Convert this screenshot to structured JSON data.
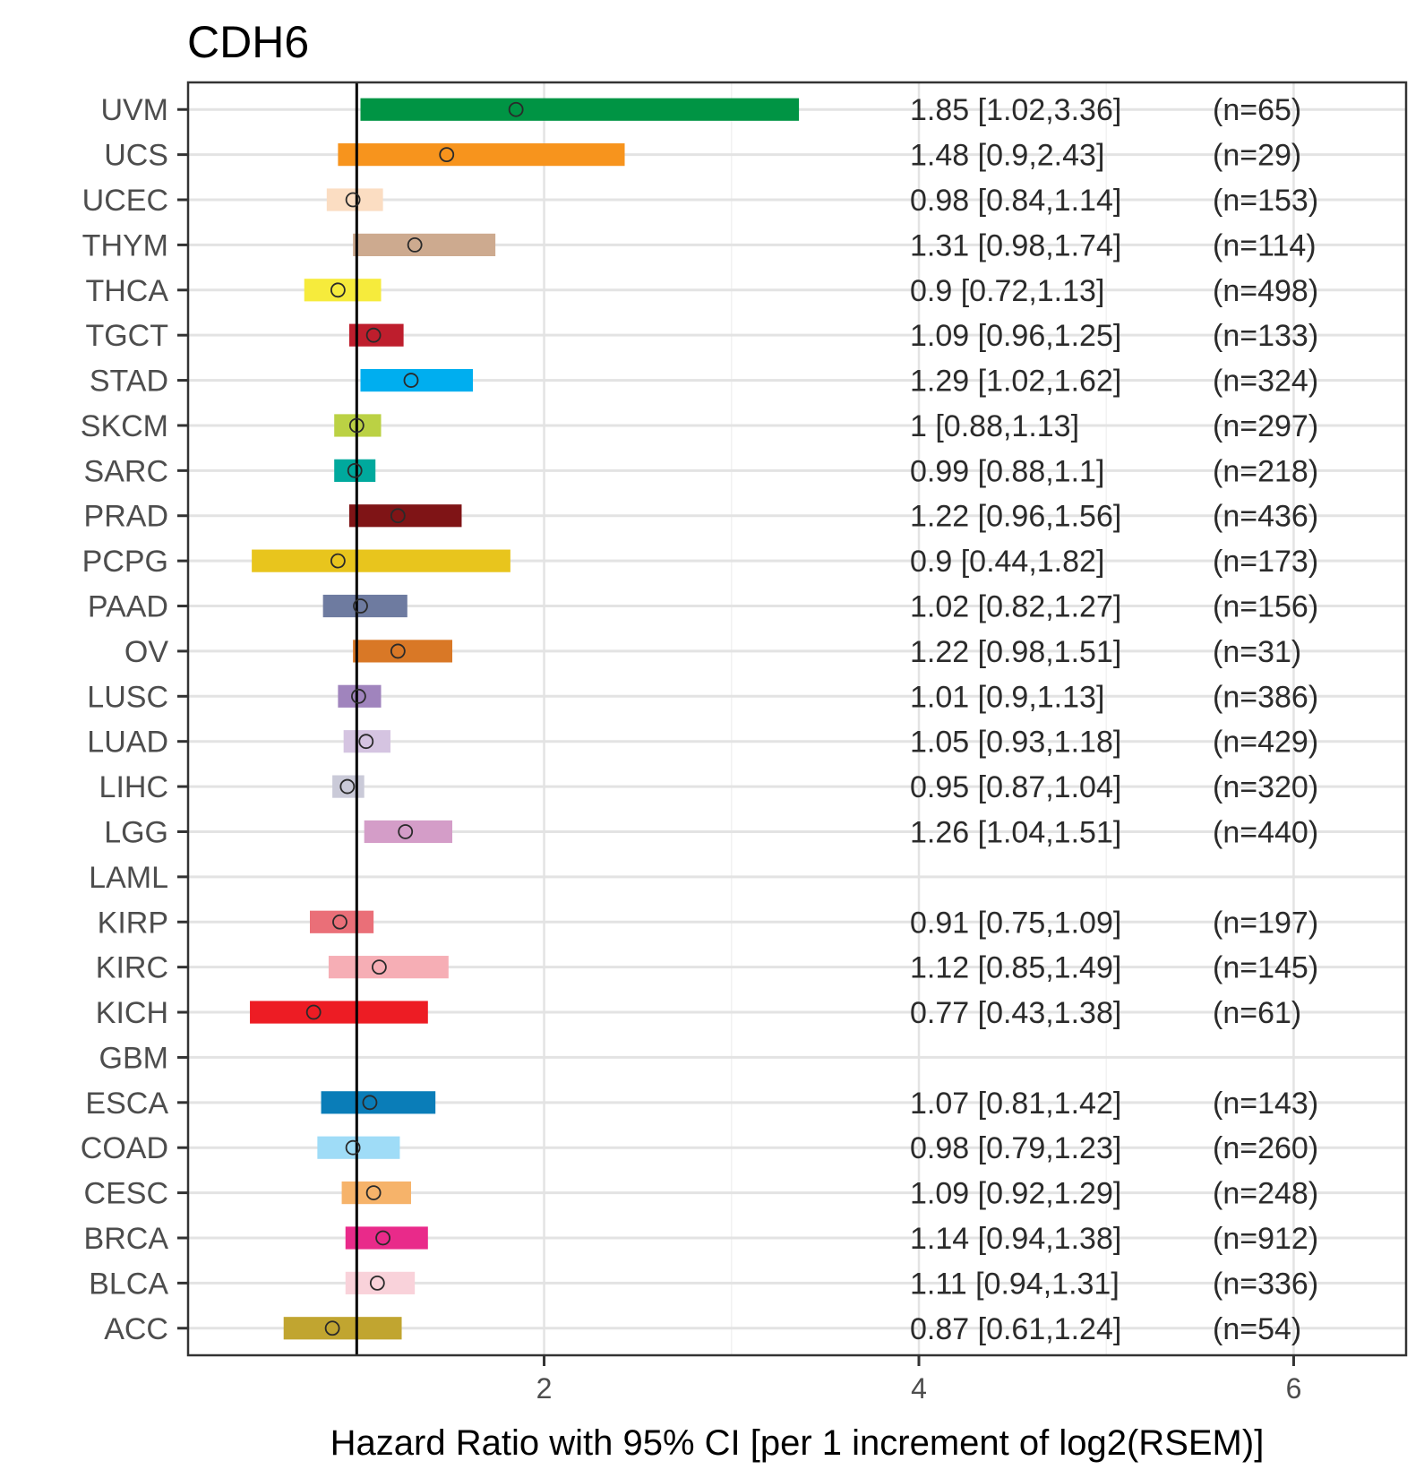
{
  "chart_data": {
    "type": "forest",
    "title": "CDH6",
    "xlabel": "Hazard Ratio with 95% CI [per 1 increment of log2(RSEM)]",
    "ylabel": "",
    "xlim": [
      0.1,
      6.6
    ],
    "xticks": [
      2,
      4,
      6
    ],
    "reference_line": 1,
    "grid": true,
    "rows": [
      {
        "label": "UVM",
        "hr": 1.85,
        "lo": 1.02,
        "hi": 3.36,
        "text": "1.85 [1.02,3.36]",
        "n": "(n=65)",
        "color": "#009444"
      },
      {
        "label": "UCS",
        "hr": 1.48,
        "lo": 0.9,
        "hi": 2.43,
        "text": "1.48 [0.9,2.43]",
        "n": "(n=29)",
        "color": "#F7941D"
      },
      {
        "label": "UCEC",
        "hr": 0.98,
        "lo": 0.84,
        "hi": 1.14,
        "text": "0.98 [0.84,1.14]",
        "n": "(n=153)",
        "color": "#FBDDC2"
      },
      {
        "label": "THYM",
        "hr": 1.31,
        "lo": 0.98,
        "hi": 1.74,
        "text": "1.31 [0.98,1.74]",
        "n": "(n=114)",
        "color": "#CDAA8F"
      },
      {
        "label": "THCA",
        "hr": 0.9,
        "lo": 0.72,
        "hi": 1.13,
        "text": "0.9 [0.72,1.13]",
        "n": "(n=498)",
        "color": "#F6EB3C"
      },
      {
        "label": "TGCT",
        "hr": 1.09,
        "lo": 0.96,
        "hi": 1.25,
        "text": "1.09 [0.96,1.25]",
        "n": "(n=133)",
        "color": "#BE1E2D"
      },
      {
        "label": "STAD",
        "hr": 1.29,
        "lo": 1.02,
        "hi": 1.62,
        "text": "1.29 [1.02,1.62]",
        "n": "(n=324)",
        "color": "#00AEEF"
      },
      {
        "label": "SKCM",
        "hr": 1,
        "lo": 0.88,
        "hi": 1.13,
        "text": "1 [0.88,1.13]",
        "n": "(n=297)",
        "color": "#BBD144"
      },
      {
        "label": "SARC",
        "hr": 0.99,
        "lo": 0.88,
        "hi": 1.1,
        "text": "0.99 [0.88,1.1]",
        "n": "(n=218)",
        "color": "#00A99D"
      },
      {
        "label": "PRAD",
        "hr": 1.22,
        "lo": 0.96,
        "hi": 1.56,
        "text": "1.22 [0.96,1.56]",
        "n": "(n=436)",
        "color": "#7F1416"
      },
      {
        "label": "PCPG",
        "hr": 0.9,
        "lo": 0.44,
        "hi": 1.82,
        "text": "0.9 [0.44,1.82]",
        "n": "(n=173)",
        "color": "#E8C51D"
      },
      {
        "label": "PAAD",
        "hr": 1.02,
        "lo": 0.82,
        "hi": 1.27,
        "text": "1.02 [0.82,1.27]",
        "n": "(n=156)",
        "color": "#6E7BA0"
      },
      {
        "label": "OV",
        "hr": 1.22,
        "lo": 0.98,
        "hi": 1.51,
        "text": "1.22 [0.98,1.51]",
        "n": "(n=31)",
        "color": "#D97826"
      },
      {
        "label": "LUSC",
        "hr": 1.01,
        "lo": 0.9,
        "hi": 1.13,
        "text": "1.01 [0.9,1.13]",
        "n": "(n=386)",
        "color": "#A084BD"
      },
      {
        "label": "LUAD",
        "hr": 1.05,
        "lo": 0.93,
        "hi": 1.18,
        "text": "1.05 [0.93,1.18]",
        "n": "(n=429)",
        "color": "#D5C4E1"
      },
      {
        "label": "LIHC",
        "hr": 0.95,
        "lo": 0.87,
        "hi": 1.04,
        "text": "0.95 [0.87,1.04]",
        "n": "(n=320)",
        "color": "#CACAD8"
      },
      {
        "label": "LGG",
        "hr": 1.26,
        "lo": 1.04,
        "hi": 1.51,
        "text": "1.26 [1.04,1.51]",
        "n": "(n=440)",
        "color": "#D49DC8"
      },
      {
        "label": "LAML",
        "hr": null,
        "lo": null,
        "hi": null,
        "text": "",
        "n": "",
        "color": "#FFFFFF"
      },
      {
        "label": "KIRP",
        "hr": 0.91,
        "lo": 0.75,
        "hi": 1.09,
        "text": "0.91 [0.75,1.09]",
        "n": "(n=197)",
        "color": "#EA6F78"
      },
      {
        "label": "KIRC",
        "hr": 1.12,
        "lo": 0.85,
        "hi": 1.49,
        "text": "1.12 [0.85,1.49]",
        "n": "(n=145)",
        "color": "#F6AEB5"
      },
      {
        "label": "KICH",
        "hr": 0.77,
        "lo": 0.43,
        "hi": 1.38,
        "text": "0.77 [0.43,1.38]",
        "n": "(n=61)",
        "color": "#ED1C24"
      },
      {
        "label": "GBM",
        "hr": null,
        "lo": null,
        "hi": null,
        "text": "",
        "n": "",
        "color": "#FFFFFF"
      },
      {
        "label": "ESCA",
        "hr": 1.07,
        "lo": 0.81,
        "hi": 1.42,
        "text": "1.07 [0.81,1.42]",
        "n": "(n=143)",
        "color": "#0A7DB8"
      },
      {
        "label": "COAD",
        "hr": 0.98,
        "lo": 0.79,
        "hi": 1.23,
        "text": "0.98 [0.79,1.23]",
        "n": "(n=260)",
        "color": "#9FDCF7"
      },
      {
        "label": "CESC",
        "hr": 1.09,
        "lo": 0.92,
        "hi": 1.29,
        "text": "1.09 [0.92,1.29]",
        "n": "(n=248)",
        "color": "#F6B36A"
      },
      {
        "label": "BRCA",
        "hr": 1.14,
        "lo": 0.94,
        "hi": 1.38,
        "text": "1.14 [0.94,1.38]",
        "n": "(n=912)",
        "color": "#E92A8A"
      },
      {
        "label": "BLCA",
        "hr": 1.11,
        "lo": 0.94,
        "hi": 1.31,
        "text": "1.11 [0.94,1.31]",
        "n": "(n=336)",
        "color": "#F9D2DA"
      },
      {
        "label": "ACC",
        "hr": 0.87,
        "lo": 0.61,
        "hi": 1.24,
        "text": "0.87 [0.61,1.24]",
        "n": "(n=54)",
        "color": "#C1A530"
      }
    ]
  }
}
